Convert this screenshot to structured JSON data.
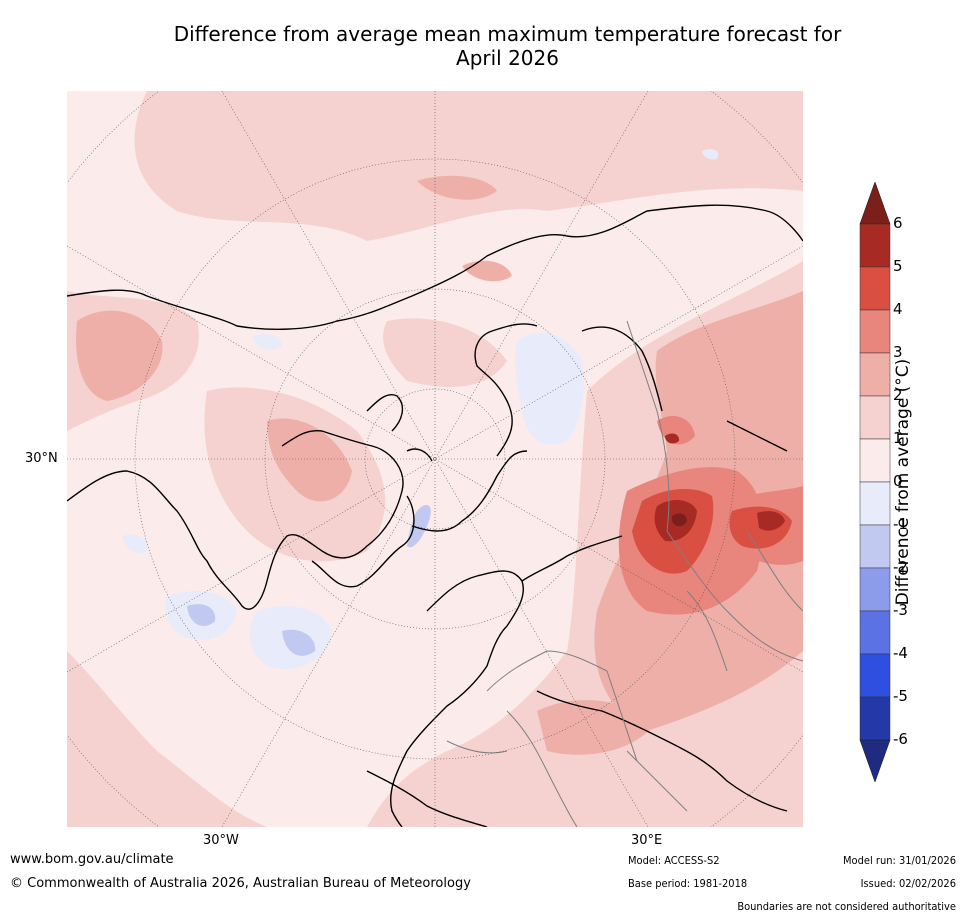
{
  "title": {
    "line1": "Difference from average mean maximum temperature forecast for",
    "line2": "April 2026"
  },
  "map": {
    "graticule_labels": {
      "lat_30n": "30°N",
      "lon_30w": "30°W",
      "lon_30e": "30°E"
    }
  },
  "colorbar": {
    "label": "Difference from average (°C)",
    "ticks": [
      "6",
      "5",
      "4",
      "3",
      "2",
      "1",
      "0",
      "-1",
      "-2",
      "-3",
      "-4",
      "-5",
      "-6"
    ],
    "colors": [
      "#7a1f1a",
      "#a72a25",
      "#d94f42",
      "#e8857c",
      "#eeafa9",
      "#f5d2cf",
      "#fbeceb",
      "#e8ebfa",
      "#c2c9f1",
      "#8c9bea",
      "#5a72e3",
      "#2f4fe0",
      "#2538a8",
      "#1e2b80"
    ]
  },
  "footer": {
    "website": "www.bom.gov.au/climate",
    "copyright": "© Commonwealth of Australia 2026, Australian Bureau of Meteorology",
    "model": "Model: ACCESS-S2",
    "base_period": "Base period: 1981-2018",
    "model_run": "Model run: 31/01/2026",
    "issued": "Issued: 02/02/2026",
    "disclaimer": "Boundaries are not considered authoritative"
  }
}
